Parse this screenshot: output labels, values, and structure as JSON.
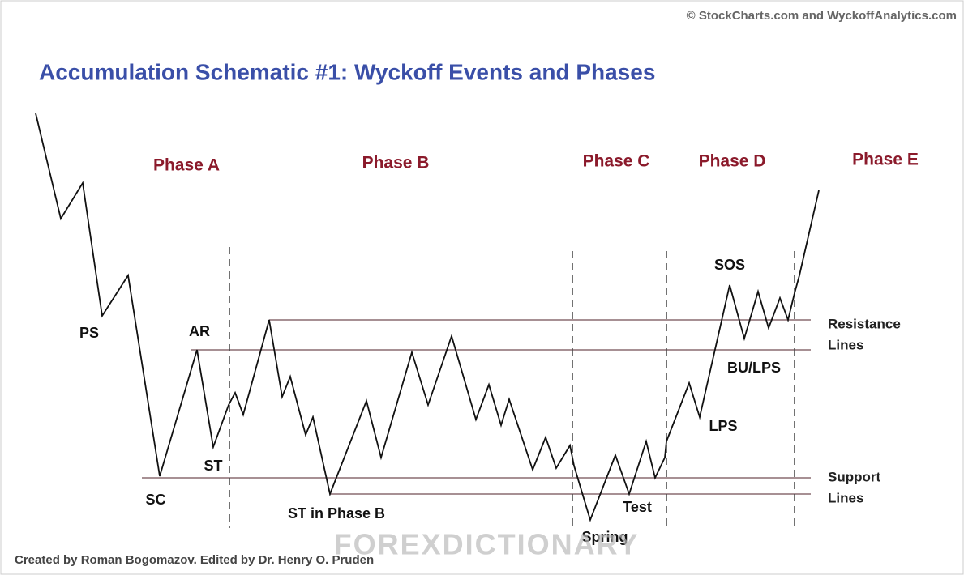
{
  "source": "© StockCharts.com and WyckoffAnalytics.com",
  "title": "Accumulation Schematic #1: Wyckoff Events and Phases",
  "phases": [
    "Phase A",
    "Phase B",
    "Phase C",
    "Phase D",
    "Phase E"
  ],
  "events": {
    "ps": "PS",
    "sc": "SC",
    "ar": "AR",
    "st": "ST",
    "st_b": "ST in Phase B",
    "spring": "Spring",
    "test": "Test",
    "lps": "LPS",
    "sos": "SOS",
    "bu_lps": "BU/LPS"
  },
  "lines": {
    "resistance": [
      "Resistance",
      "Lines"
    ],
    "support": [
      "Support",
      "Lines"
    ]
  },
  "credit": "Created by Roman Bogomazov. Edited by Dr. Henry O. Pruden",
  "watermark": "FOREXDICTIONARY"
}
